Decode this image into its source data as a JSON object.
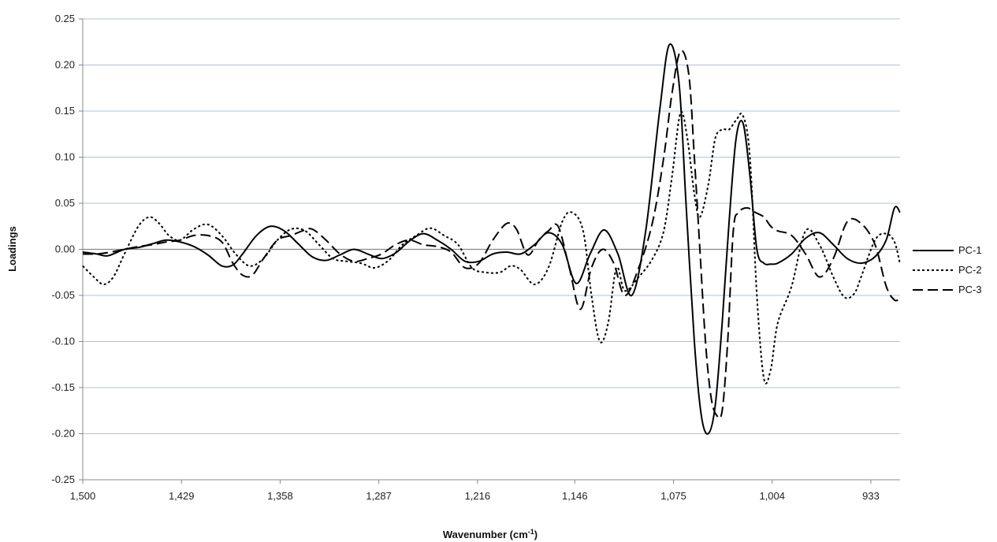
{
  "chart_data": {
    "type": "line",
    "title": "",
    "xlabel": "Wavenumber (cm",
    "xlabel_sup": "-1",
    "xlabel_close": ")",
    "ylabel": "Loadings",
    "xlim": [
      1500,
      900
    ],
    "x_reversed": true,
    "ylim": [
      -0.25,
      0.25
    ],
    "y_ticks": [
      0.25,
      0.2,
      0.15,
      0.1,
      0.05,
      0.0,
      -0.05,
      -0.1,
      -0.15,
      -0.2,
      -0.25
    ],
    "y_tick_labels": [
      "0.25",
      "0.20",
      "0.15",
      "0.10",
      "0.05",
      "0.00",
      "-0.05",
      "-0.10",
      "-0.15",
      "-0.20",
      "-0.25"
    ],
    "x_ticks": [
      1500,
      1429,
      1358,
      1287,
      1216,
      1146,
      1075,
      1004,
      933
    ],
    "x_tick_labels": [
      "1,500",
      "1,429",
      "1,358",
      "1,287",
      "1,216",
      "1,146",
      "1,075",
      "1,004",
      "933"
    ],
    "grid": "horizontal",
    "legend_position": "right",
    "series": [
      {
        "name": "PC-1",
        "dash": "solid",
        "x": [
          1500,
          1490,
          1482,
          1470,
          1460,
          1450,
          1440,
          1430,
          1420,
          1410,
          1400,
          1392,
          1385,
          1375,
          1365,
          1355,
          1345,
          1335,
          1325,
          1315,
          1305,
          1295,
          1285,
          1275,
          1265,
          1255,
          1245,
          1235,
          1225,
          1215,
          1205,
          1195,
          1185,
          1175,
          1165,
          1155,
          1145,
          1135,
          1125,
          1115,
          1105,
          1095,
          1085,
          1078,
          1071,
          1066,
          1060,
          1055,
          1050,
          1045,
          1040,
          1035,
          1030,
          1025,
          1020,
          1015,
          1010,
          1005,
          1000,
          990,
          980,
          970,
          960,
          950,
          940,
          930,
          922,
          916,
          912
        ],
        "y": [
          -0.003,
          -0.005,
          -0.007,
          0.0,
          0.002,
          0.006,
          0.01,
          0.008,
          0.003,
          -0.006,
          -0.018,
          -0.017,
          -0.005,
          0.015,
          0.025,
          0.02,
          0.006,
          -0.008,
          -0.012,
          -0.006,
          0.0,
          -0.005,
          -0.01,
          -0.004,
          0.009,
          0.017,
          0.01,
          0.0,
          -0.013,
          -0.013,
          -0.005,
          -0.003,
          -0.005,
          0.005,
          0.018,
          0.005,
          -0.037,
          -0.005,
          0.021,
          -0.005,
          -0.05,
          0.02,
          0.15,
          0.222,
          0.18,
          0.05,
          -0.1,
          -0.18,
          -0.2,
          -0.17,
          -0.08,
          0.03,
          0.12,
          0.137,
          0.08,
          0.0,
          -0.015,
          -0.016,
          -0.015,
          -0.005,
          0.012,
          0.018,
          0.005,
          -0.01,
          -0.015,
          -0.008,
          0.01,
          0.045,
          0.04
        ]
      },
      {
        "name": "PC-2",
        "dash": "dotted",
        "x": [
          1500,
          1492,
          1485,
          1478,
          1470,
          1460,
          1452,
          1445,
          1438,
          1430,
          1420,
          1410,
          1400,
          1390,
          1380,
          1370,
          1360,
          1350,
          1340,
          1330,
          1320,
          1310,
          1300,
          1290,
          1280,
          1270,
          1260,
          1250,
          1240,
          1230,
          1220,
          1210,
          1200,
          1192,
          1185,
          1175,
          1165,
          1155,
          1148,
          1140,
          1134,
          1128,
          1122,
          1116,
          1110,
          1100,
          1090,
          1082,
          1076,
          1070,
          1065,
          1060,
          1056,
          1050,
          1045,
          1040,
          1035,
          1030,
          1025,
          1020,
          1015,
          1010,
          1005,
          1000,
          990,
          980,
          970,
          960,
          952,
          945,
          940,
          930,
          922,
          916,
          912
        ],
        "y": [
          -0.018,
          -0.03,
          -0.038,
          -0.03,
          -0.005,
          0.025,
          0.035,
          0.028,
          0.015,
          0.01,
          0.022,
          0.027,
          0.015,
          -0.005,
          -0.018,
          -0.01,
          0.01,
          0.022,
          0.02,
          0.005,
          -0.01,
          -0.013,
          -0.015,
          -0.02,
          -0.012,
          0.005,
          0.015,
          0.023,
          0.015,
          0.005,
          -0.02,
          -0.025,
          -0.025,
          -0.018,
          -0.022,
          -0.038,
          -0.02,
          0.03,
          0.04,
          0.02,
          -0.05,
          -0.1,
          -0.08,
          -0.02,
          -0.045,
          -0.03,
          -0.01,
          0.02,
          0.08,
          0.148,
          0.12,
          0.06,
          0.035,
          0.07,
          0.12,
          0.13,
          0.13,
          0.14,
          0.145,
          0.1,
          -0.05,
          -0.14,
          -0.13,
          -0.08,
          -0.04,
          0.02,
          0.005,
          -0.03,
          -0.052,
          -0.048,
          -0.03,
          0.01,
          0.017,
          0.008,
          -0.016
        ]
      },
      {
        "name": "PC-3",
        "dash": "dashed",
        "x": [
          1500,
          1490,
          1480,
          1470,
          1460,
          1450,
          1440,
          1430,
          1420,
          1410,
          1400,
          1392,
          1385,
          1378,
          1370,
          1360,
          1350,
          1342,
          1335,
          1325,
          1315,
          1305,
          1295,
          1285,
          1275,
          1265,
          1255,
          1245,
          1235,
          1225,
          1215,
          1205,
          1195,
          1188,
          1180,
          1172,
          1165,
          1158,
          1150,
          1142,
          1134,
          1126,
          1118,
          1110,
          1100,
          1090,
          1082,
          1076,
          1070,
          1064,
          1060,
          1056,
          1052,
          1048,
          1044,
          1040,
          1036,
          1032,
          1028,
          1022,
          1016,
          1010,
          1005,
          1000,
          990,
          980,
          970,
          960,
          950,
          940,
          930,
          922,
          916,
          912
        ],
        "y": [
          -0.005,
          -0.005,
          -0.003,
          0.0,
          0.003,
          0.005,
          0.008,
          0.01,
          0.015,
          0.015,
          0.008,
          -0.015,
          -0.028,
          -0.028,
          -0.01,
          0.01,
          0.015,
          0.02,
          0.022,
          0.01,
          -0.005,
          -0.013,
          -0.01,
          -0.005,
          0.005,
          0.01,
          0.005,
          0.003,
          -0.003,
          -0.02,
          -0.015,
          0.01,
          0.028,
          0.022,
          -0.006,
          0.01,
          0.02,
          0.025,
          -0.02,
          -0.065,
          -0.02,
          0.0,
          -0.015,
          -0.05,
          -0.02,
          0.03,
          0.1,
          0.17,
          0.215,
          0.19,
          0.1,
          0.0,
          -0.1,
          -0.16,
          -0.18,
          -0.175,
          -0.1,
          0.02,
          0.04,
          0.045,
          0.04,
          0.035,
          0.025,
          0.02,
          0.015,
          -0.005,
          -0.03,
          -0.01,
          0.03,
          0.028,
          0.005,
          -0.04,
          -0.055,
          -0.053
        ]
      }
    ]
  }
}
